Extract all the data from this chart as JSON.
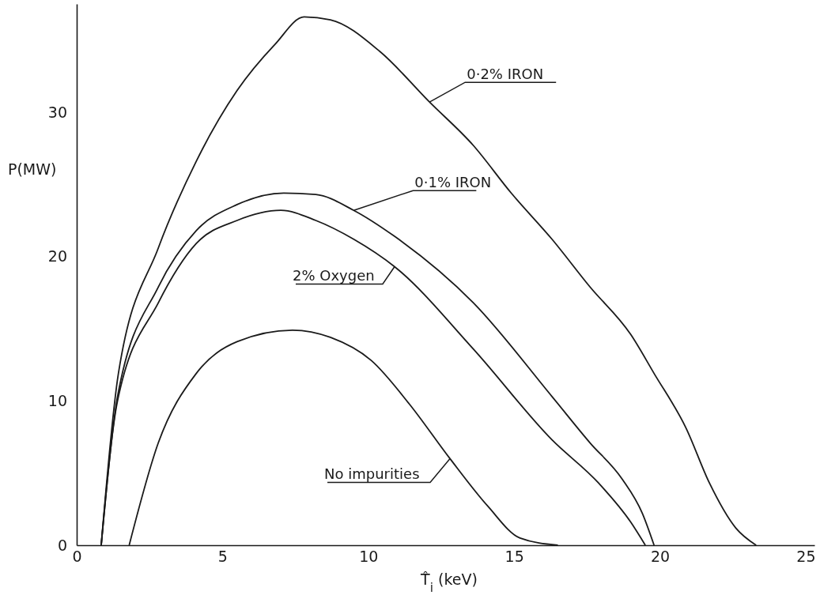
{
  "chart_data": {
    "type": "line",
    "xlabel": "T̂$_{i}$ (keV)",
    "ylabel": "P(MW)",
    "xlim": [
      0,
      25.3
    ],
    "ylim": [
      0,
      37.5
    ],
    "xticks": [
      0,
      5,
      10,
      15,
      20,
      25
    ],
    "yticks": [
      0,
      10,
      20,
      30
    ],
    "grid": false,
    "marker": "none",
    "line_style": "solid",
    "series": [
      {
        "name": "0·2% IRON",
        "color": "#1a1a1a",
        "x": [
          0.84,
          1.43,
          2.8,
          4.1,
          5.5,
          6.8,
          7.8,
          8.7,
          10.4,
          12.1,
          13.6,
          14.9,
          16.3,
          17.6,
          19,
          19.8,
          20.9,
          21.7,
          22.6,
          23.3
        ],
        "values": [
          0,
          11.9,
          20.6,
          26.6,
          31.5,
          34.7,
          36.6,
          36.4,
          34.2,
          30.7,
          27.7,
          24.4,
          21.2,
          17.9,
          14.6,
          11.9,
          8.1,
          4.3,
          1.2,
          0
        ]
      },
      {
        "name": "0·1% IRON",
        "color": "#1a1a1a",
        "x": [
          0.84,
          1.4,
          2.8,
          4.1,
          5.5,
          7.1,
          8.2,
          9.5,
          10.9,
          13.6,
          16.3,
          17.6,
          18.7,
          19.4,
          19.8
        ],
        "values": [
          0,
          10.3,
          17.9,
          21.8,
          23.6,
          24.4,
          24.3,
          23.2,
          21.4,
          16.8,
          10.3,
          7.1,
          4.6,
          2.2,
          0
        ]
      },
      {
        "name": "2% Oxygen",
        "color": "#1a1a1a",
        "x": [
          0.84,
          1.4,
          2.8,
          4.1,
          5.5,
          7,
          8.2,
          9.5,
          10.9,
          13.6,
          16.3,
          17.9,
          19,
          19.5
        ],
        "values": [
          0,
          10,
          16.8,
          20.9,
          22.5,
          23.2,
          22.5,
          21.2,
          19.3,
          13.6,
          7.3,
          4.3,
          1.6,
          0
        ]
      },
      {
        "name": "No impurities",
        "color": "#1a1a1a",
        "x": [
          1.8,
          2.8,
          4.1,
          5.5,
          7.4,
          8.7,
          10.1,
          11.4,
          12.8,
          14.1,
          15.2,
          16.5
        ],
        "values": [
          0,
          7.1,
          11.9,
          14.1,
          14.9,
          14.4,
          12.8,
          9.8,
          6,
          2.7,
          0.5,
          0
        ]
      }
    ]
  }
}
